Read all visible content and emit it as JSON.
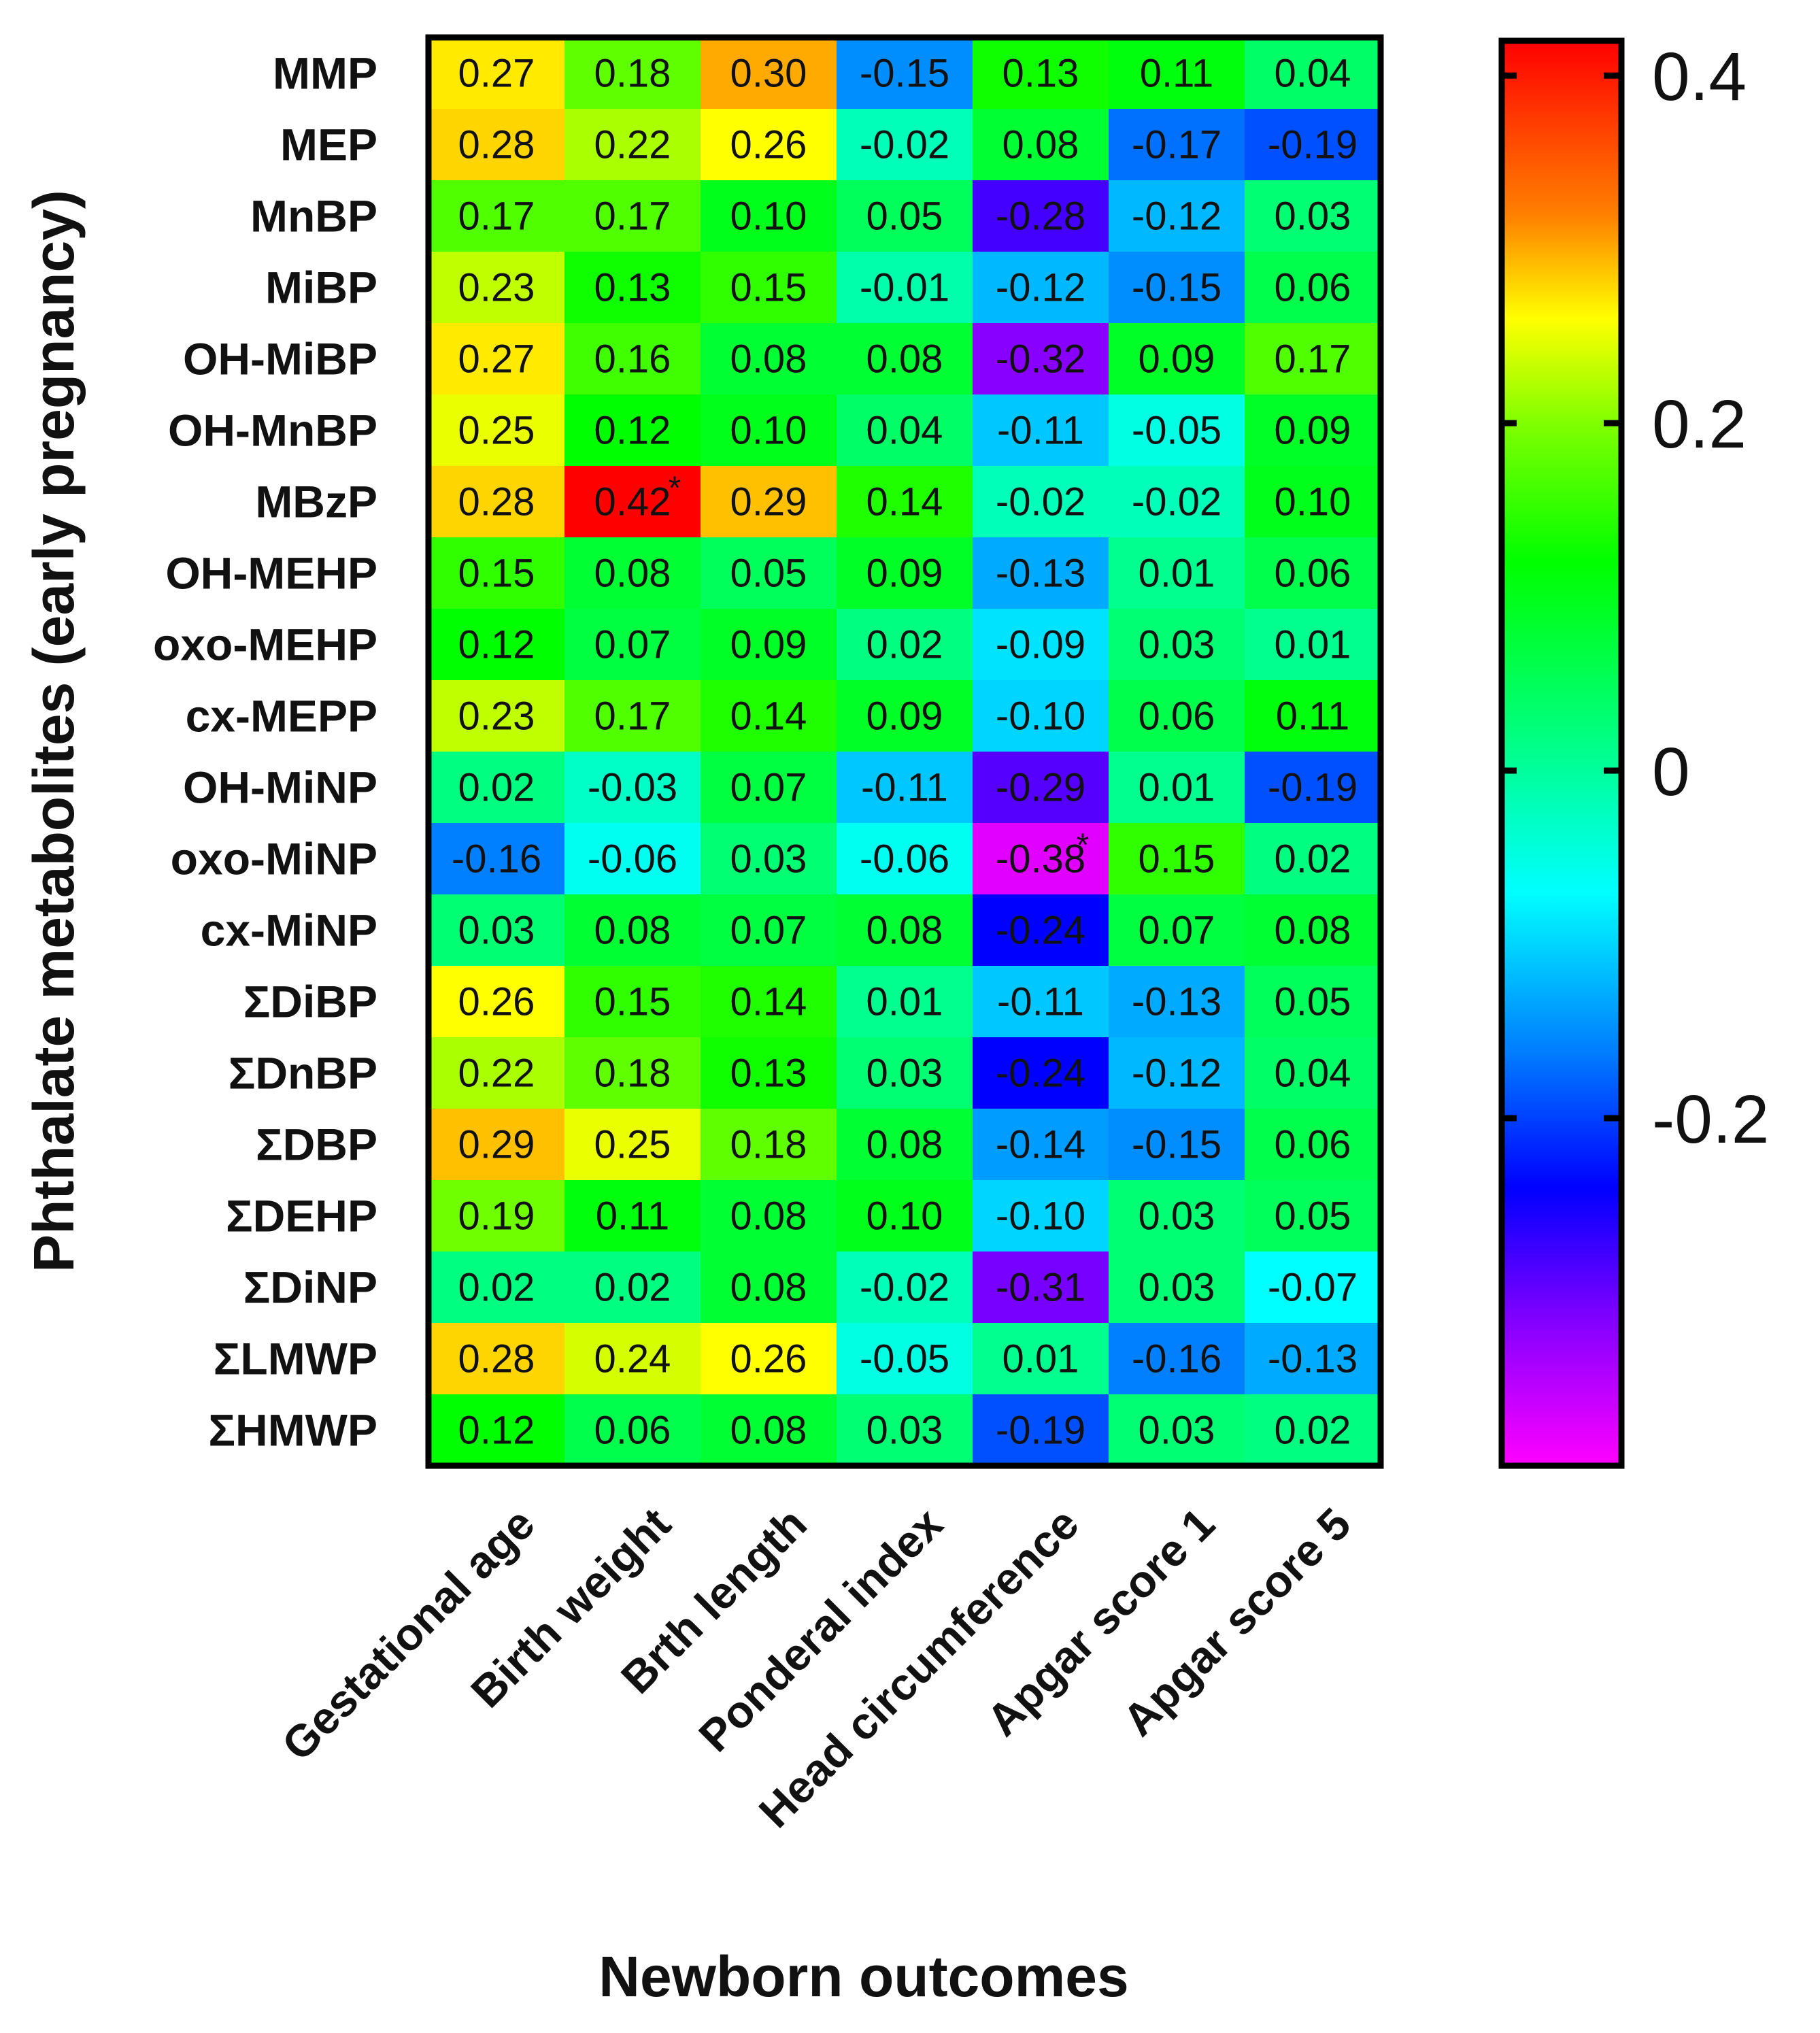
{
  "chart_data": {
    "type": "heatmap",
    "xlabel": "Newborn outcomes",
    "ylabel": "Phthalate metabolites (early pregnancy)",
    "columns": [
      "Gestational age",
      "Birth weight",
      "Brth length",
      "Ponderal index",
      "Head circumference",
      "Apgar score 1",
      "Apgar score 5"
    ],
    "rows": [
      "MMP",
      "MEP",
      "MnBP",
      "MiBP",
      "OH-MiBP",
      "OH-MnBP",
      "MBzP",
      "OH-MEHP",
      "oxo-MEHP",
      "cx-MEPP",
      "OH-MiNP",
      "oxo-MiNP",
      "cx-MiNP",
      "ΣDiBP",
      "ΣDnBP",
      "ΣDBP",
      "ΣDEHP",
      "ΣDiNP",
      "ΣLMWP",
      "ΣHMWP"
    ],
    "values": [
      [
        "0.27",
        "0.18",
        "0.30",
        "-0.15",
        "0.13",
        "0.11",
        "0.04"
      ],
      [
        "0.28",
        "0.22",
        "0.26",
        "-0.02",
        "0.08",
        "-0.17",
        "-0.19"
      ],
      [
        "0.17",
        "0.17",
        "0.10",
        "0.05",
        "-0.28",
        "-0.12",
        "0.03"
      ],
      [
        "0.23",
        "0.13",
        "0.15",
        "-0.01",
        "-0.12",
        "-0.15",
        "0.06"
      ],
      [
        "0.27",
        "0.16",
        "0.08",
        "0.08",
        "-0.32",
        "0.09",
        "0.17"
      ],
      [
        "0.25",
        "0.12",
        "0.10",
        "0.04",
        "-0.11",
        "-0.05",
        "0.09"
      ],
      [
        "0.28",
        "0.42",
        "0.29",
        "0.14",
        "-0.02",
        "-0.02",
        "0.10"
      ],
      [
        "0.15",
        "0.08",
        "0.05",
        "0.09",
        "-0.13",
        "0.01",
        "0.06"
      ],
      [
        "0.12",
        "0.07",
        "0.09",
        "0.02",
        "-0.09",
        "0.03",
        "0.01"
      ],
      [
        "0.23",
        "0.17",
        "0.14",
        "0.09",
        "-0.10",
        "0.06",
        "0.11"
      ],
      [
        "0.02",
        "-0.03",
        "0.07",
        "-0.11",
        "-0.29",
        "0.01",
        "-0.19"
      ],
      [
        "-0.16",
        "-0.06",
        "0.03",
        "-0.06",
        "-0.38",
        "0.15",
        "0.02"
      ],
      [
        "0.03",
        "0.08",
        "0.07",
        "0.08",
        "-0.24",
        "0.07",
        "0.08"
      ],
      [
        "0.26",
        "0.15",
        "0.14",
        "0.01",
        "-0.11",
        "-0.13",
        "0.05"
      ],
      [
        "0.22",
        "0.18",
        "0.13",
        "0.03",
        "-0.24",
        "-0.12",
        "0.04"
      ],
      [
        "0.29",
        "0.25",
        "0.18",
        "0.08",
        "-0.14",
        "-0.15",
        "0.06"
      ],
      [
        "0.19",
        "0.11",
        "0.08",
        "0.10",
        "-0.10",
        "0.03",
        "0.05"
      ],
      [
        "0.02",
        "0.02",
        "0.08",
        "-0.02",
        "-0.31",
        "0.03",
        "-0.07"
      ],
      [
        "0.28",
        "0.24",
        "0.26",
        "-0.05",
        "0.01",
        "-0.16",
        "-0.13"
      ],
      [
        "0.12",
        "0.06",
        "0.08",
        "0.03",
        "-0.19",
        "0.03",
        "0.02"
      ]
    ],
    "significant_marker": "*",
    "significant": [
      [
        6,
        1
      ],
      [
        11,
        4
      ]
    ],
    "colorbar": {
      "range": [
        -0.4,
        0.42
      ],
      "ticks": [
        0.4,
        0.2,
        0,
        -0.2
      ],
      "tick_labels": [
        "0.4",
        "0.2",
        "0",
        "-0.2"
      ]
    },
    "colormap": [
      {
        "v": -0.4,
        "color": "#ff00ff"
      },
      {
        "v": -0.32,
        "color": "#8800ff"
      },
      {
        "v": -0.24,
        "color": "#0000ff"
      },
      {
        "v": -0.16,
        "color": "#0080ff"
      },
      {
        "v": -0.07,
        "color": "#00ffff"
      },
      {
        "v": 0.02,
        "color": "#00ff80"
      },
      {
        "v": 0.12,
        "color": "#00ff00"
      },
      {
        "v": 0.2,
        "color": "#80ff00"
      },
      {
        "v": 0.26,
        "color": "#ffff00"
      },
      {
        "v": 0.32,
        "color": "#ff8000"
      },
      {
        "v": 0.42,
        "color": "#ff0000"
      }
    ]
  }
}
